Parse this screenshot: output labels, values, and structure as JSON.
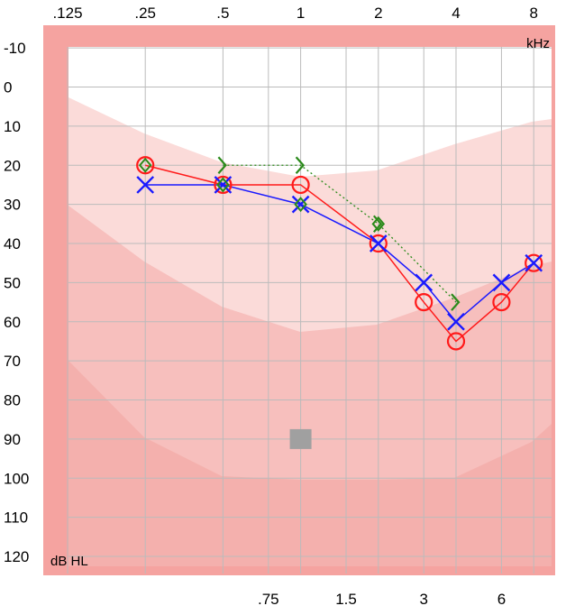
{
  "chart_data": {
    "type": "scatter",
    "title": "",
    "top_tick_labels": [
      ".125",
      ".25",
      ".5",
      "1",
      "2",
      "4",
      "8"
    ],
    "bottom_tick_labels": [
      ".75",
      "1.5",
      "3",
      "6"
    ],
    "top_frequencies_khz": [
      0.125,
      0.25,
      0.5,
      1,
      2,
      4,
      8
    ],
    "bottom_frequencies_khz": [
      0.75,
      1.5,
      3,
      6
    ],
    "y_tick_labels": [
      "-10",
      "0",
      "10",
      "20",
      "30",
      "40",
      "50",
      "60",
      "70",
      "80",
      "90",
      "100",
      "110",
      "120"
    ],
    "y_ticks": [
      -10,
      0,
      10,
      20,
      30,
      40,
      50,
      60,
      70,
      80,
      90,
      100,
      110,
      120
    ],
    "ylim": [
      -10,
      120
    ],
    "y_inverted": true,
    "x_scale": "log2",
    "grid": true,
    "xunit_label": "kHz",
    "yunit_label": "dB HL",
    "series": [
      {
        "symbol": "circle",
        "color": "#ff1a1a",
        "line": "solid",
        "points": [
          [
            0.25,
            20
          ],
          [
            0.5,
            25
          ],
          [
            1,
            25
          ],
          [
            2,
            40
          ],
          [
            3,
            55
          ],
          [
            4,
            65
          ],
          [
            6,
            55
          ],
          [
            8,
            45
          ]
        ]
      },
      {
        "symbol": "cross",
        "color": "#1a1aff",
        "line": "solid",
        "points": [
          [
            0.25,
            25
          ],
          [
            0.5,
            25
          ],
          [
            1,
            30
          ],
          [
            2,
            40
          ],
          [
            3,
            50
          ],
          [
            4,
            60
          ],
          [
            6,
            50
          ],
          [
            8,
            45
          ]
        ]
      },
      {
        "symbol": "right-bracket",
        "color": "#2a8a1a",
        "line": "dotted",
        "points": [
          [
            0.5,
            20
          ],
          [
            1,
            20
          ],
          [
            2,
            35
          ],
          [
            4,
            55
          ]
        ]
      },
      {
        "symbol": "diamond",
        "color": "#2a8a1a",
        "line": "none",
        "points": [
          [
            0.25,
            20
          ],
          [
            0.5,
            25
          ],
          [
            1,
            30
          ],
          [
            2,
            35
          ]
        ]
      }
    ],
    "marker_square": {
      "x": 1,
      "y": 90,
      "color": "#a0a0a0"
    },
    "colors": {
      "frame": "#f5a3a0",
      "plot_background": "#ffffff",
      "band_light": "#fbdbd9",
      "band_mid": "#f7bfbd",
      "band_deep": "#f4b0ad",
      "gridline": "#bbbbbb",
      "axis_text": "#000000"
    }
  }
}
